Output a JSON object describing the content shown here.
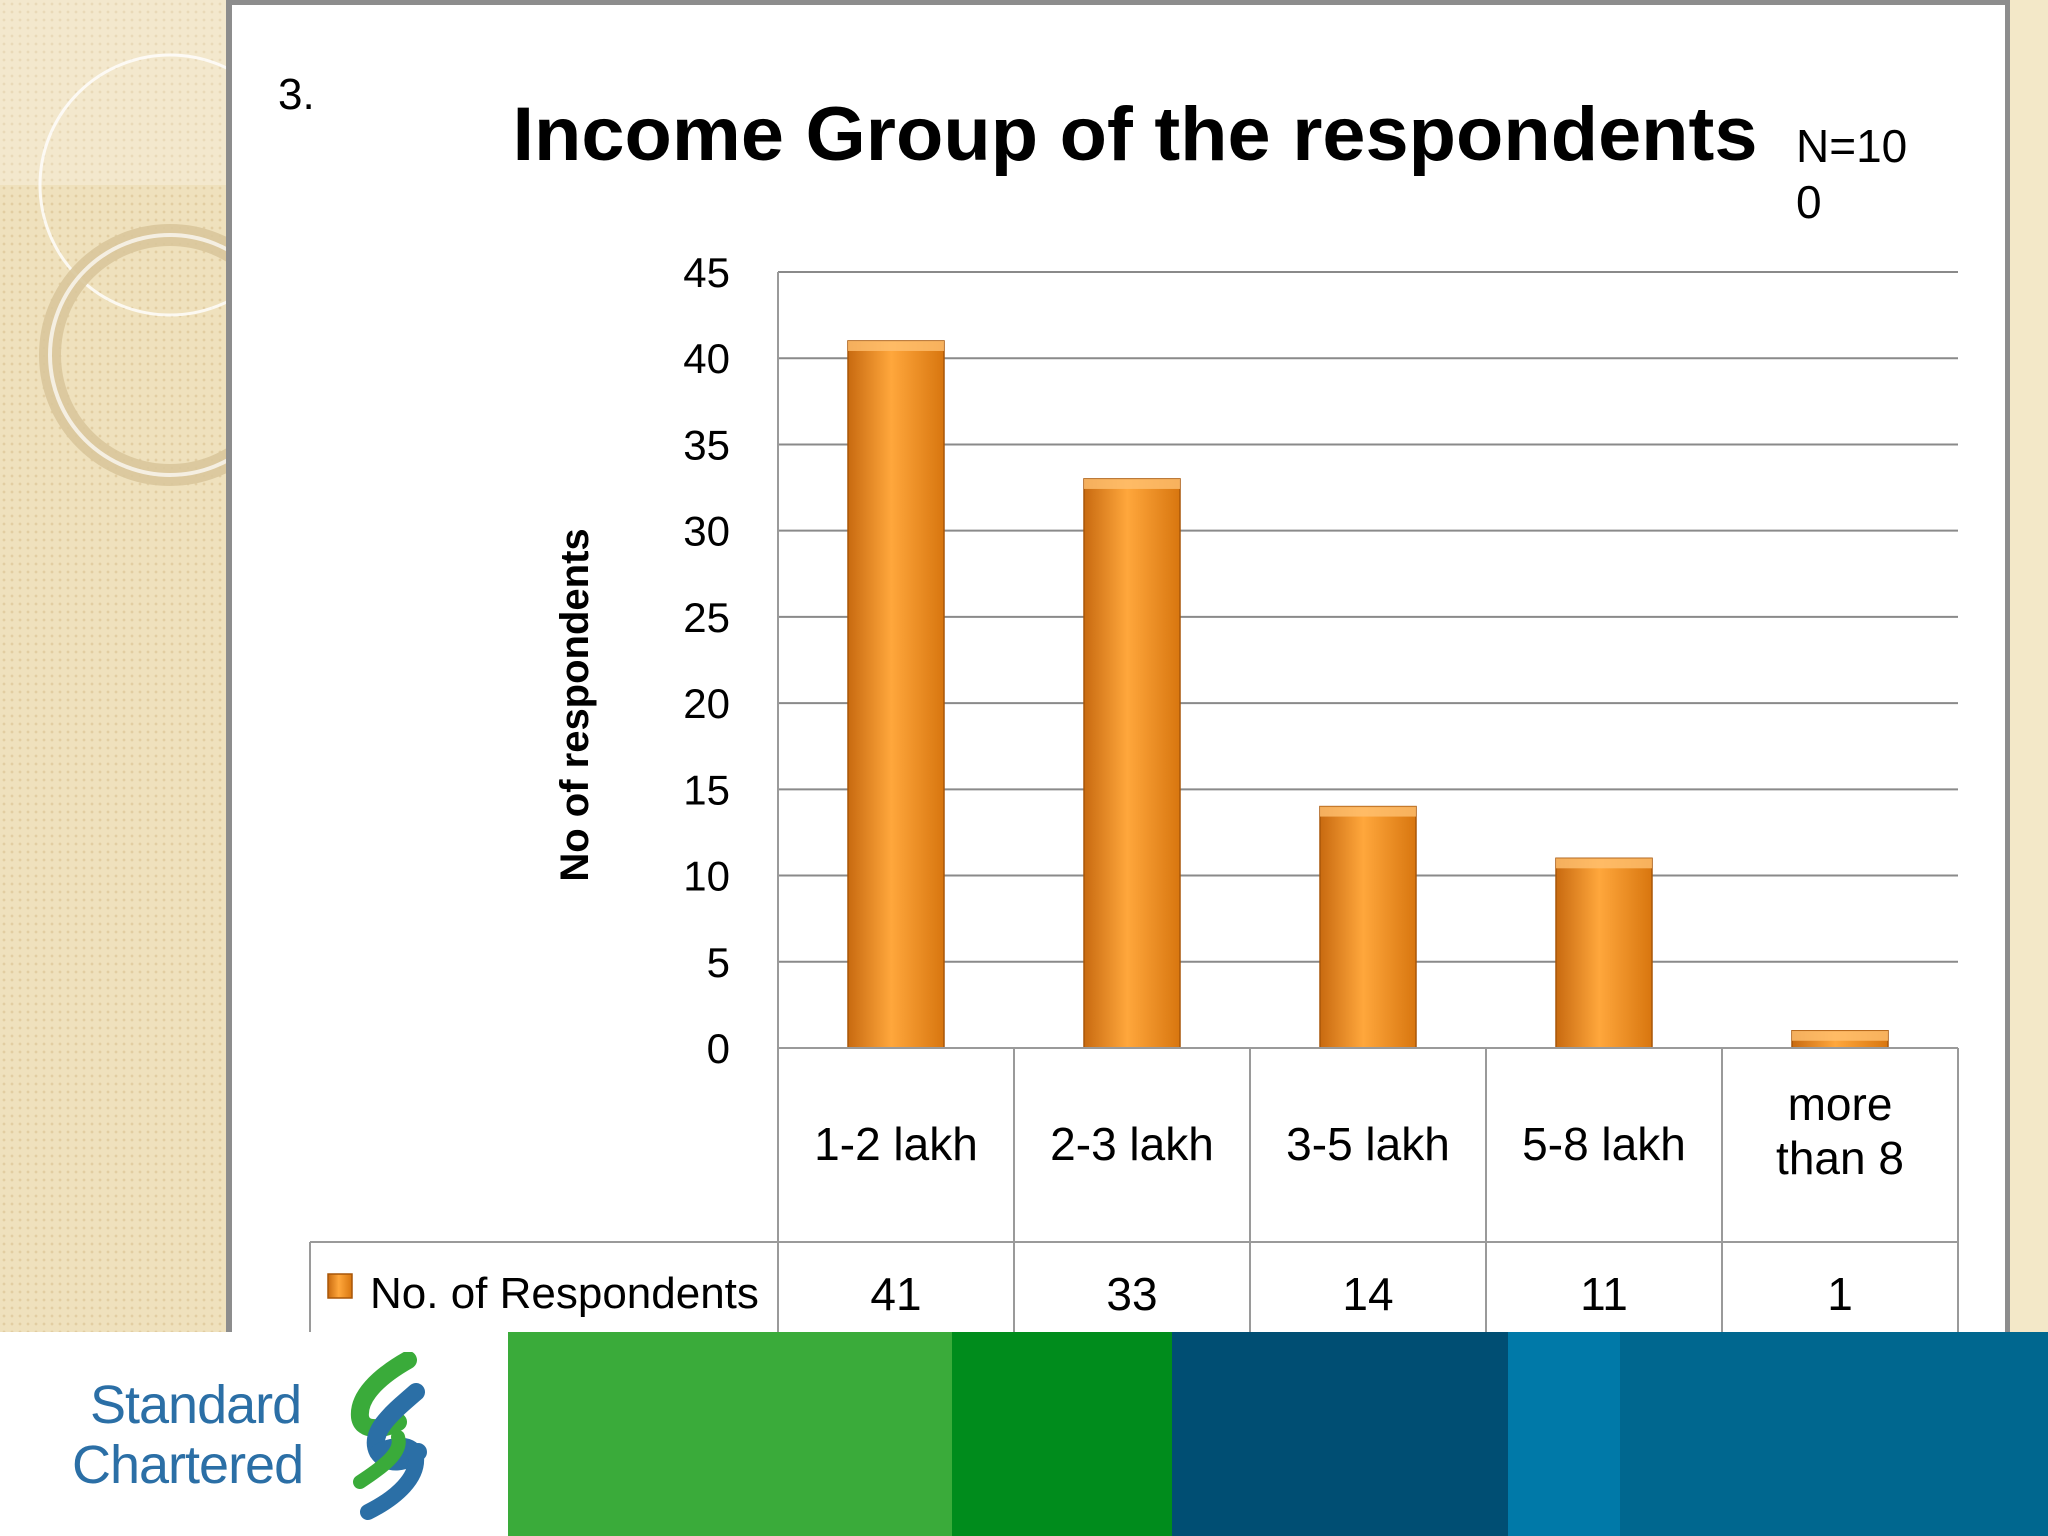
{
  "slide": {
    "number": "3.",
    "sample_note": "N=100"
  },
  "chart_data": {
    "type": "bar",
    "title": "Income Group of the respondents",
    "xlabel": "",
    "ylabel": "No of respondents",
    "categories": [
      "1-2 lakh",
      "2-3 lakh",
      "3-5 lakh",
      "5-8 lakh",
      "more than 8"
    ],
    "series": [
      {
        "name": "No. of Respondents",
        "values": [
          41,
          33,
          14,
          11,
          1
        ]
      }
    ],
    "ylim": [
      0,
      45
    ],
    "yticks": [
      0,
      5,
      10,
      15,
      20,
      25,
      30,
      35,
      40,
      45
    ],
    "grid": true,
    "legend": "data-table",
    "bar_color": "#f0901e"
  },
  "footer": {
    "logo_line1": "Standard",
    "logo_line2": "Chartered",
    "band_colors": [
      "#3aab3a",
      "#008c1c",
      "#004e73",
      "#0079a8",
      "#00678f"
    ],
    "logo_icon": "standard-chartered-logo-icon"
  }
}
